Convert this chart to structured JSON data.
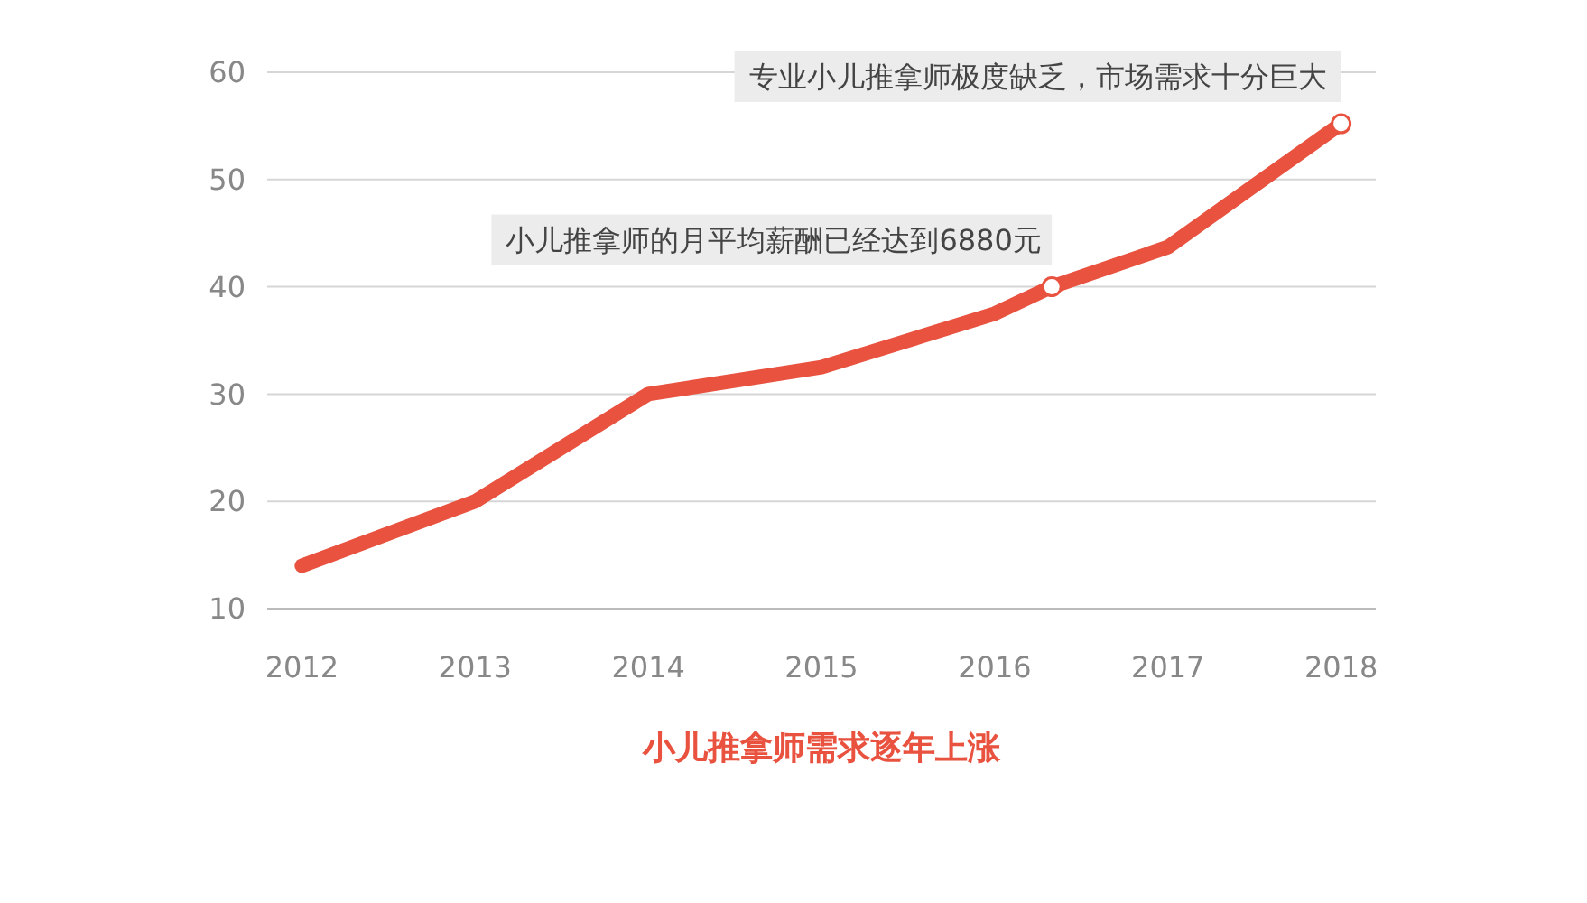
{
  "chart_data": {
    "type": "line",
    "title": "小儿推拿师需求逐年上涨",
    "x": [
      2012,
      2013,
      2014,
      2015,
      2016,
      2016.33,
      2017,
      2018
    ],
    "series": [
      {
        "color": "#e8523f",
        "values": [
          14,
          20,
          30,
          32.5,
          37.5,
          40,
          43.7,
          55.2
        ]
      }
    ],
    "xlim": [
      2011.8,
      2018.2
    ],
    "xticks": [
      2012,
      2013,
      2014,
      2015,
      2016,
      2017,
      2018
    ],
    "ylim": [
      10,
      60
    ],
    "yticks": [
      10,
      20,
      30,
      40,
      50,
      60
    ],
    "grid": "y",
    "marker": "none",
    "line_style": "solid",
    "annotations": [
      {
        "text": "专业小儿推拿师极度缺乏，市场需求十分巨大",
        "x": 2018,
        "y": 55.2
      },
      {
        "text": "小儿推拿师的月平均薪酬已经达到6880元",
        "x": 2016.33,
        "y": 40
      }
    ]
  }
}
